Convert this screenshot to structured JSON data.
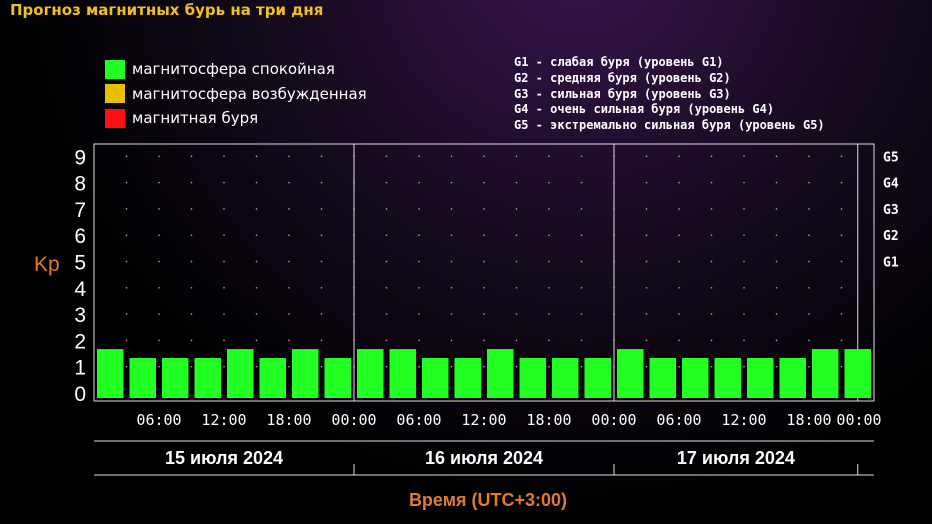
{
  "title": "Прогноз магнитных бурь на три дня",
  "legend": {
    "items": [
      {
        "label": "магнитосфера спокойная",
        "color": "#22ff22"
      },
      {
        "label": "магнитосфера возбужденная",
        "color": "#e8c000"
      },
      {
        "label": "магнитная буря",
        "color": "#ff1010"
      }
    ]
  },
  "g_levels": [
    "G1 - слабая буря (уровень G1)",
    "G2 - средняя буря (уровень G2)",
    "G3 - сильная буря (уровень G3)",
    "G4 - очень сильная буря (уровень G4)",
    "G5 - экстремально сильная буря (уровень G5)"
  ],
  "chart_data": {
    "type": "bar",
    "ylabel": "Kp",
    "xlabel": "Время (UTC+3:00)",
    "ylim": [
      0,
      9
    ],
    "y_ticks": [
      "0",
      "1",
      "2",
      "3",
      "4",
      "5",
      "6",
      "7",
      "8",
      "9"
    ],
    "right_ticks": [
      {
        "label": "G1",
        "value": 5
      },
      {
        "label": "G2",
        "value": 6
      },
      {
        "label": "G3",
        "value": 7
      },
      {
        "label": "G4",
        "value": 8
      },
      {
        "label": "G5",
        "value": 9
      }
    ],
    "x_tick_labels": [
      "06:00",
      "12:00",
      "18:00",
      "00:00",
      "06:00",
      "12:00",
      "18:00",
      "00:00",
      "06:00",
      "12:00",
      "18:00",
      "00:00"
    ],
    "days": [
      "15 июля 2024",
      "16 июля 2024",
      "17 июля 2024"
    ],
    "values": [
      1.67,
      1.33,
      1.33,
      1.33,
      1.67,
      1.33,
      1.67,
      1.33,
      1.67,
      1.67,
      1.33,
      1.33,
      1.67,
      1.33,
      1.33,
      1.33,
      1.67,
      1.33,
      1.33,
      1.33,
      1.33,
      1.33,
      1.67,
      1.67
    ],
    "bar_color": "#22ff22",
    "grid": true
  }
}
